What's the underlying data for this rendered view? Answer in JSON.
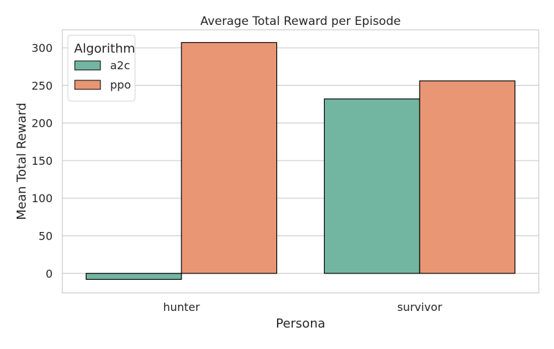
{
  "chart_data": {
    "type": "bar",
    "title": "Average Total Reward per Episode",
    "xlabel": "Persona",
    "ylabel": "Mean Total Reward",
    "categories": [
      "hunter",
      "survivor"
    ],
    "series": [
      {
        "name": "a2c",
        "values": [
          -8,
          232
        ],
        "color": "#72b6a1"
      },
      {
        "name": "ppo",
        "values": [
          307,
          256
        ],
        "color": "#e99675"
      }
    ],
    "yticks": [
      0,
      50,
      100,
      150,
      200,
      250,
      300
    ],
    "ytick_labels": [
      "0",
      "50",
      "100",
      "150",
      "200",
      "250",
      "300"
    ],
    "ylim": [
      -26,
      324
    ],
    "grid": "y",
    "legend": {
      "title": "Algorithm",
      "position": "top-left"
    }
  }
}
